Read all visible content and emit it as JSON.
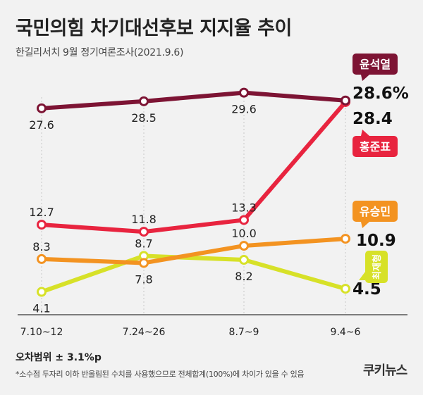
{
  "header": {
    "title": "국민의힘 차기대선후보 지지율 추이",
    "subtitle": "한길리서치 9월 정기여론조사(2021.9.6)"
  },
  "chart_data": {
    "type": "line",
    "title": "국민의힘 차기대선후보 지지율 추이",
    "xlabel": "",
    "ylabel": "",
    "ylim": [
      0,
      32
    ],
    "categories": [
      "7.10~12",
      "7.24~26",
      "8.7~9",
      "9.4~6"
    ],
    "series": [
      {
        "name": "윤석열",
        "color": "#7d1434",
        "values": [
          27.6,
          28.5,
          29.6,
          28.6
        ],
        "point_labels": [
          "27.6",
          "28.5",
          "29.6"
        ],
        "final_label": "28.6%"
      },
      {
        "name": "홍준표",
        "color": "#e8243f",
        "values": [
          12.7,
          11.8,
          13.3,
          28.4
        ],
        "point_labels": [
          "12.7",
          "11.8",
          "13.3"
        ],
        "final_label": "28.4"
      },
      {
        "name": "유승민",
        "color": "#f39321",
        "values": [
          8.3,
          7.8,
          10.0,
          10.9
        ],
        "point_labels": [
          "8.3",
          "7.8",
          "10.0"
        ],
        "final_label": "10.9"
      },
      {
        "name": "최재형",
        "color": "#d7e128",
        "values": [
          4.1,
          8.7,
          8.2,
          4.5
        ],
        "point_labels": [
          "4.1",
          "8.7",
          "8.2"
        ],
        "final_label": "4.5"
      }
    ]
  },
  "footer": {
    "margin_of_error": "오차범위 ± 3.1%p",
    "note": "*소수점 두자리 이하 반올림된 수치를 사용했으므로 전체합계(100%)에 차이가 있을 수 있음",
    "logo": "쿠키뉴스"
  }
}
